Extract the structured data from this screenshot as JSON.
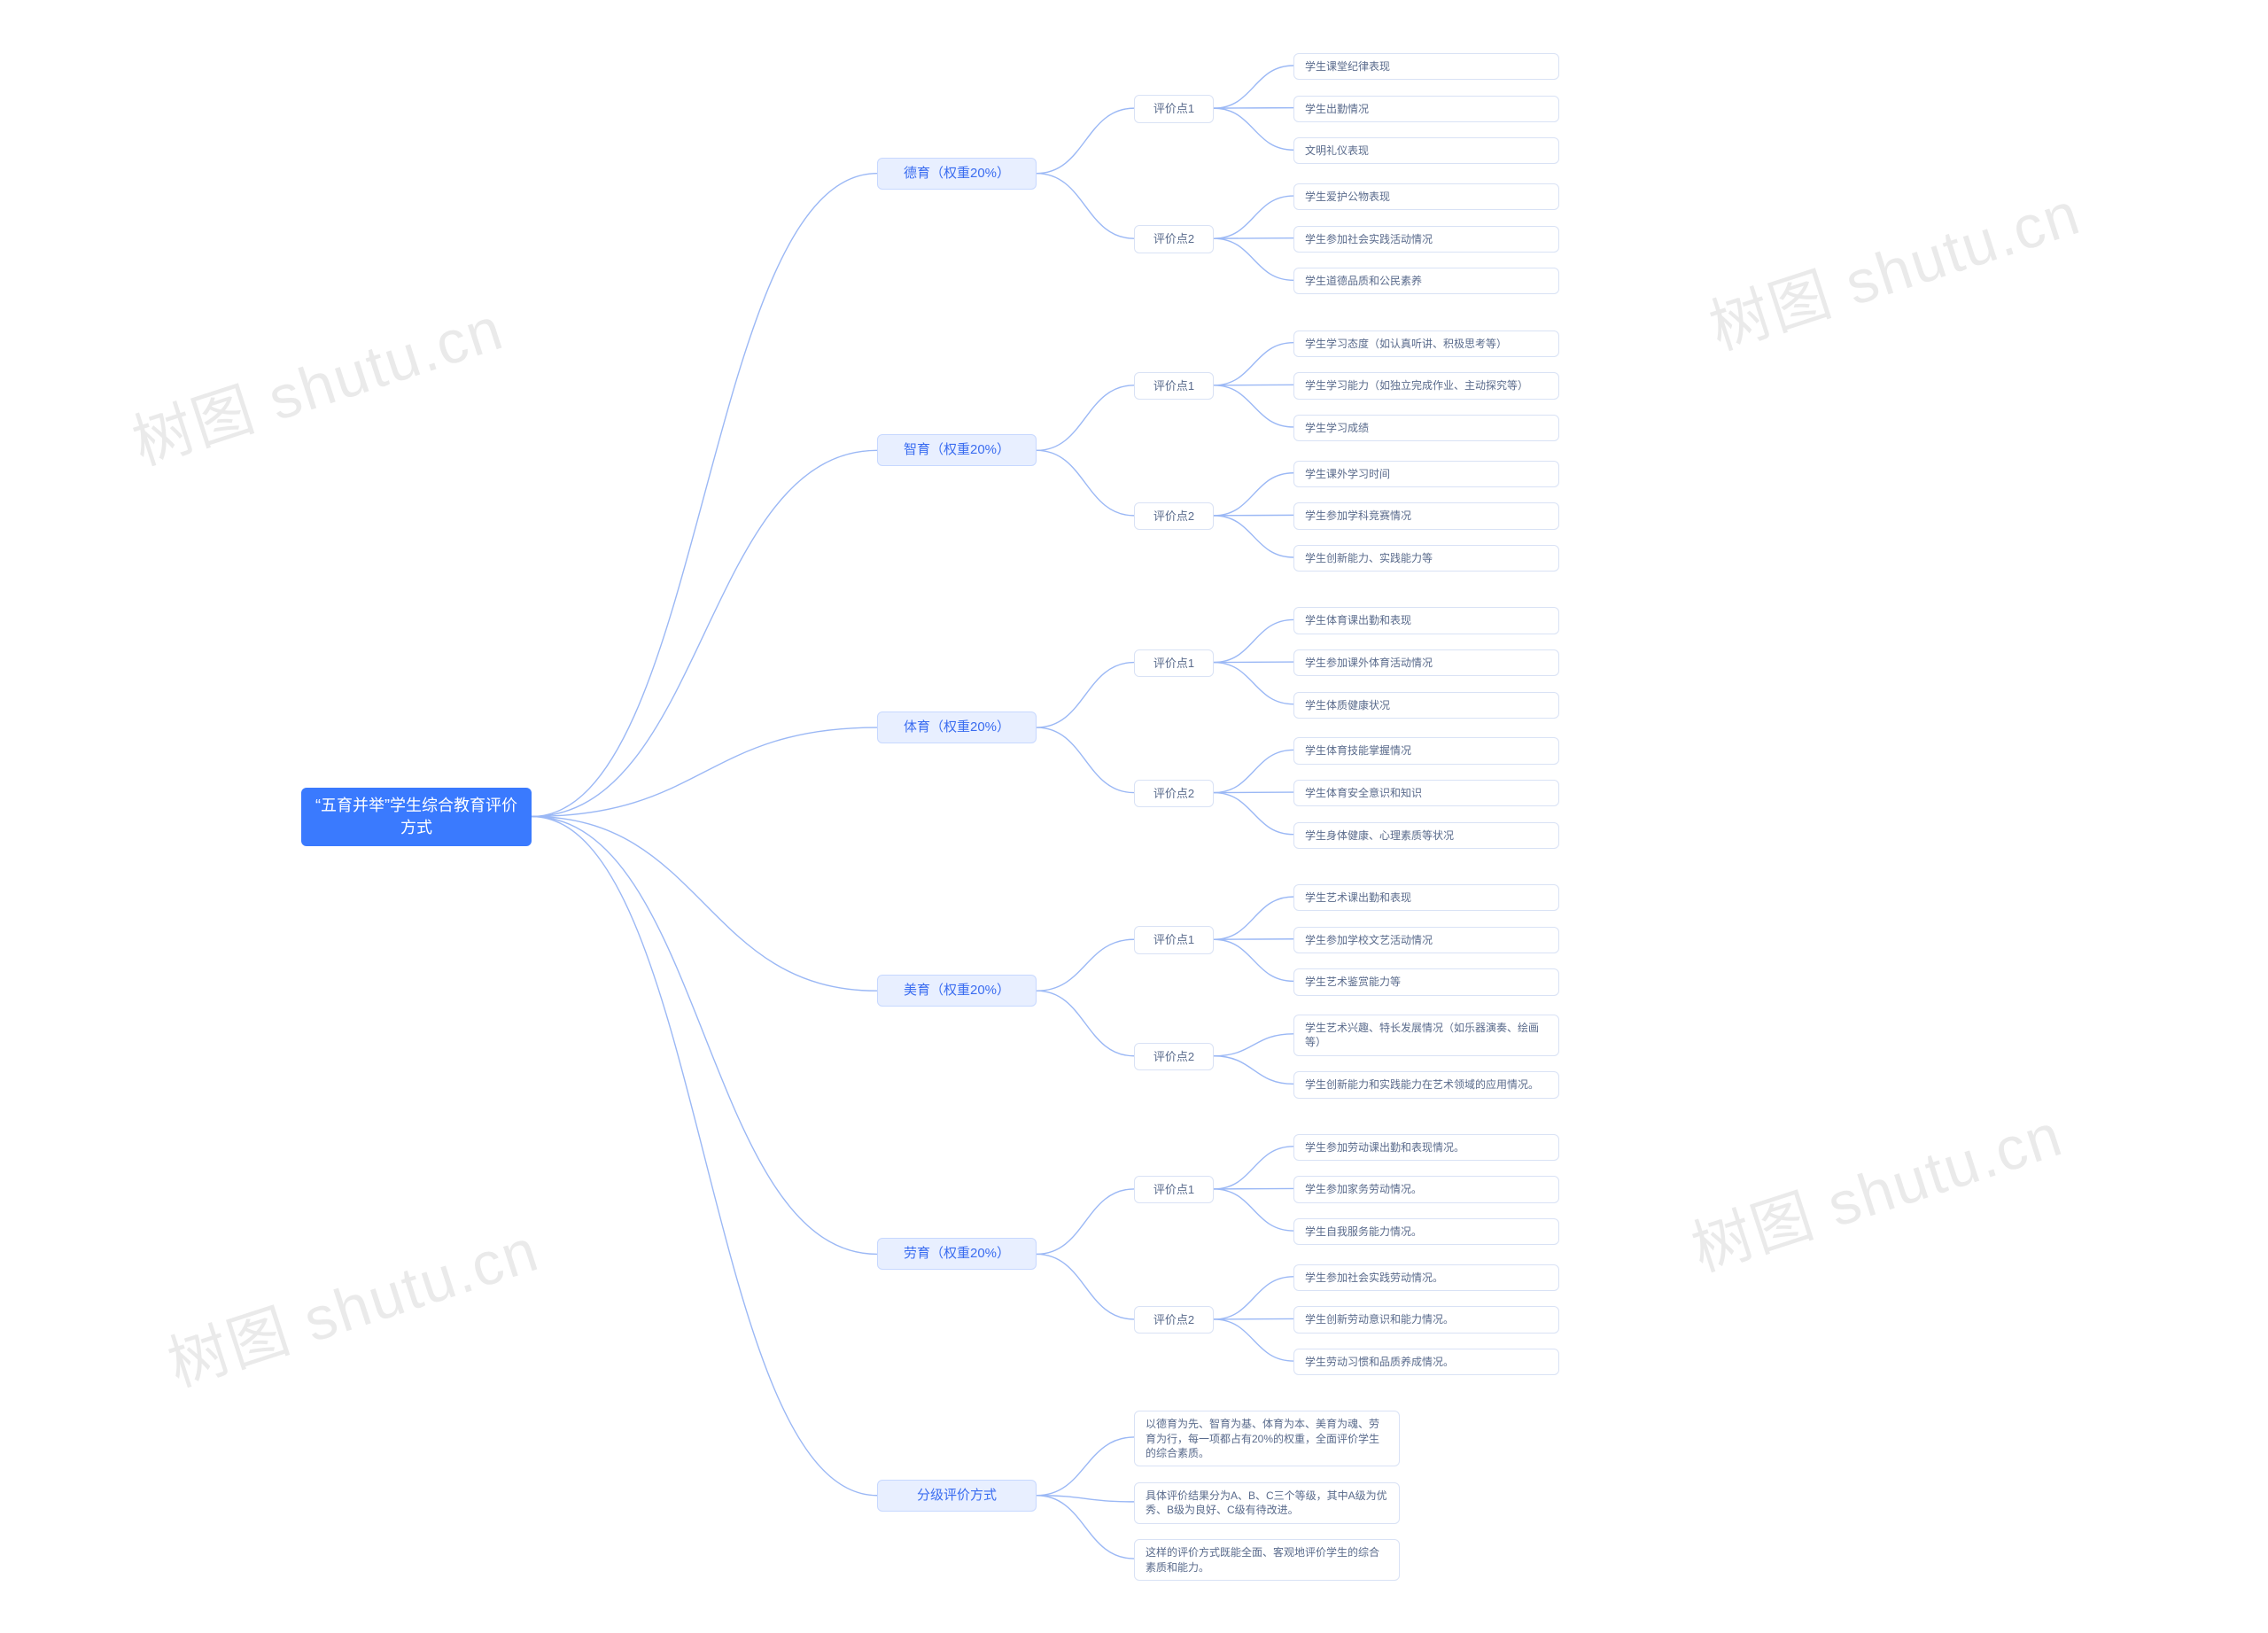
{
  "diagram": {
    "type": "tree",
    "orientation": "right",
    "watermark_text": "树图 shutu.cn",
    "watermark_color": "#000000",
    "watermark_opacity": 0.08,
    "watermark_fontsize": 68,
    "watermark_rotation_deg": -18,
    "edge_color": "#9bb8f5",
    "edge_width": 1.4,
    "background_color": "#ffffff",
    "root_bg": "#3a7afe",
    "root_fg": "#ffffff",
    "level1_bg": "#e8efff",
    "level1_fg": "#3a6cf0",
    "level1_border": "#c7d8ff",
    "box_bg": "#ffffff",
    "box_fg": "#5a6b8c",
    "box_border": "#d9e2f5",
    "root_fontsize": 18,
    "level1_fontsize": 15,
    "level2_fontsize": 13,
    "leaf_fontsize": 12,
    "border_radius": 6,
    "root": {
      "label": "“五育并举”学生综合教育评价方式"
    },
    "branches": [
      {
        "label": "德育（权重20%）",
        "points": [
          {
            "label": "评价点1",
            "leaves": [
              "学生课堂纪律表现",
              "学生出勤情况",
              "文明礼仪表现"
            ]
          },
          {
            "label": "评价点2",
            "leaves": [
              "学生爱护公物表现",
              "学生参加社会实践活动情况",
              "学生道德品质和公民素养"
            ]
          }
        ]
      },
      {
        "label": "智育（权重20%）",
        "points": [
          {
            "label": "评价点1",
            "leaves": [
              "学生学习态度（如认真听讲、积极思考等）",
              "学生学习能力（如独立完成作业、主动探究等）",
              "学生学习成绩"
            ]
          },
          {
            "label": "评价点2",
            "leaves": [
              "学生课外学习时间",
              "学生参加学科竞赛情况",
              "学生创新能力、实践能力等"
            ]
          }
        ]
      },
      {
        "label": "体育（权重20%）",
        "points": [
          {
            "label": "评价点1",
            "leaves": [
              "学生体育课出勤和表现",
              "学生参加课外体育活动情况",
              "学生体质健康状况"
            ]
          },
          {
            "label": "评价点2",
            "leaves": [
              "学生体育技能掌握情况",
              "学生体育安全意识和知识",
              "学生身体健康、心理素质等状况"
            ]
          }
        ]
      },
      {
        "label": "美育（权重20%）",
        "points": [
          {
            "label": "评价点1",
            "leaves": [
              "学生艺术课出勤和表现",
              "学生参加学校文艺活动情况",
              "学生艺术鉴赏能力等"
            ]
          },
          {
            "label": "评价点2",
            "leaves": [
              "学生艺术兴趣、特长发展情况（如乐器演奏、绘画等）",
              "学生创新能力和实践能力在艺术领域的应用情况。"
            ]
          }
        ]
      },
      {
        "label": "劳育（权重20%）",
        "points": [
          {
            "label": "评价点1",
            "leaves": [
              "学生参加劳动课出勤和表现情况。",
              "学生参加家务劳动情况。",
              "学生自我服务能力情况。"
            ]
          },
          {
            "label": "评价点2",
            "leaves": [
              "学生参加社会实践劳动情况。",
              "学生创新劳动意识和能力情况。",
              "学生劳动习惯和品质养成情况。"
            ]
          }
        ]
      },
      {
        "label": "分级评价方式",
        "points": [
          {
            "label": null,
            "leaves": [
              "以德育为先、智育为基、体育为本、美育为魂、劳育为行，每一项都占有20%的权重，全面评价学生的综合素质。",
              "具体评价结果分为A、B、C三个等级，其中A级为优秀、B级为良好、C级有待改进。",
              "这样的评价方式既能全面、客观地评价学生的综合素质和能力。"
            ]
          }
        ]
      }
    ]
  }
}
